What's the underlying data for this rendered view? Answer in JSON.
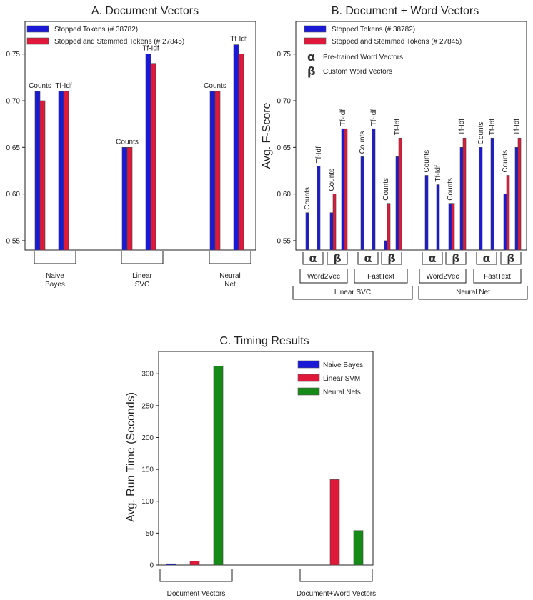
{
  "colors": {
    "blue": "#1a1ad6",
    "red": "#e0193a",
    "green": "#168a16"
  },
  "chart_data": [
    {
      "type": "bar",
      "title": "A. Document Vectors",
      "ylim": [
        0.54,
        0.785
      ],
      "yticks": [
        "0.55",
        "0.60",
        "0.65",
        "0.70",
        "0.75"
      ],
      "ytick_values": [
        0.55,
        0.6,
        0.65,
        0.7,
        0.75
      ],
      "legend": [
        {
          "label": "Stopped Tokens (# 38782)",
          "color": "blue"
        },
        {
          "label": "Stopped and Stemmed Tokens (# 27845)",
          "color": "red"
        }
      ],
      "legend_position": "top-left",
      "groups": [
        {
          "label_lines": [
            "Naive",
            "Bayes"
          ],
          "bars": [
            {
              "label": "Counts",
              "blue": 0.71,
              "red": 0.7
            },
            {
              "label": "Tf-Idf",
              "blue": 0.71,
              "red": 0.71
            }
          ]
        },
        {
          "label_lines": [
            "Linear",
            "SVC"
          ],
          "bars": [
            {
              "label": "Counts",
              "blue": 0.65,
              "red": 0.65
            },
            {
              "label": "Tf-Idf",
              "blue": 0.75,
              "red": 0.74
            }
          ]
        },
        {
          "label_lines": [
            "Neural",
            "Net"
          ],
          "bars": [
            {
              "label": "Counts",
              "blue": 0.71,
              "red": 0.71
            },
            {
              "label": "Tf-Idf",
              "blue": 0.76,
              "red": 0.75
            }
          ]
        }
      ]
    },
    {
      "type": "bar",
      "title": "B. Document + Word Vectors",
      "ylabel": "Avg. F-Score",
      "ylim": [
        0.54,
        0.785
      ],
      "yticks": [
        "0.55",
        "0.60",
        "0.65",
        "0.70",
        "0.75"
      ],
      "ytick_values": [
        0.55,
        0.6,
        0.65,
        0.7,
        0.75
      ],
      "legend": [
        {
          "label": "Stopped Tokens (# 38782)",
          "color": "blue"
        },
        {
          "label": "Stopped and Stemmed Tokens (# 27845)",
          "color": "red"
        }
      ],
      "legend_position": "top-left",
      "notes": [
        {
          "symbol": "α",
          "text": "Pre-trained Word Vectors"
        },
        {
          "symbol": "β",
          "text": "Custom Word Vectors"
        }
      ],
      "groups": [
        {
          "symbol": "α",
          "model": "Word2Vec",
          "classifier": "Linear SVC",
          "bars": [
            {
              "label": "Counts",
              "blue": 0.58,
              "red": null
            },
            {
              "label": "Tf-Idf",
              "blue": 0.63,
              "red": null
            }
          ]
        },
        {
          "symbol": "β",
          "model": "Word2Vec",
          "classifier": "Linear SVC",
          "bars": [
            {
              "label": "Counts",
              "blue": 0.58,
              "red": 0.6
            },
            {
              "label": "Tf-Idf",
              "blue": 0.67,
              "red": 0.67
            }
          ]
        },
        {
          "symbol": "α",
          "model": "FastText",
          "classifier": "Linear SVC",
          "bars": [
            {
              "label": "Counts",
              "blue": 0.64,
              "red": null
            },
            {
              "label": "Tf-Idf",
              "blue": 0.67,
              "red": null
            }
          ]
        },
        {
          "symbol": "β",
          "model": "FastText",
          "classifier": "Linear SVC",
          "bars": [
            {
              "label": "Counts",
              "blue": 0.55,
              "red": 0.59
            },
            {
              "label": "Tf-Idf",
              "blue": 0.64,
              "red": 0.66
            }
          ]
        },
        {
          "symbol": "α",
          "model": "Word2Vec",
          "classifier": "Neural Net",
          "bars": [
            {
              "label": "Counts",
              "blue": 0.62,
              "red": null
            },
            {
              "label": "Tf-Idf",
              "blue": 0.61,
              "red": null
            }
          ]
        },
        {
          "symbol": "β",
          "model": "Word2Vec",
          "classifier": "Neural Net",
          "bars": [
            {
              "label": "Counts",
              "blue": 0.59,
              "red": 0.59
            },
            {
              "label": "Tf-Idf",
              "blue": 0.65,
              "red": 0.66
            }
          ]
        },
        {
          "symbol": "α",
          "model": "FastText",
          "classifier": "Neural Net",
          "bars": [
            {
              "label": "Counts",
              "blue": 0.65,
              "red": null
            },
            {
              "label": "Tf-Idf",
              "blue": 0.66,
              "red": null
            }
          ]
        },
        {
          "symbol": "β",
          "model": "FastText",
          "classifier": "Neural Net",
          "bars": [
            {
              "label": "Counts",
              "blue": 0.6,
              "red": 0.62
            },
            {
              "label": "Tf-Idf",
              "blue": 0.65,
              "red": 0.66
            }
          ]
        }
      ],
      "model_labels": [
        "Word2Vec",
        "FastText",
        "Word2Vec",
        "FastText"
      ],
      "classifier_labels": [
        "Linear SVC",
        "Neural Net"
      ]
    },
    {
      "type": "bar",
      "title": "C. Timing Results",
      "ylabel": "Avg. Run Time (Seconds)",
      "ylim": [
        0,
        335
      ],
      "yticks": [
        "0",
        "50",
        "100",
        "150",
        "200",
        "250",
        "300"
      ],
      "ytick_values": [
        0,
        50,
        100,
        150,
        200,
        250,
        300
      ],
      "legend": [
        {
          "label": "Naive Bayes",
          "color": "blue"
        },
        {
          "label": "Linear SVM",
          "color": "red"
        },
        {
          "label": "Neural Nets",
          "color": "green"
        }
      ],
      "legend_position": "top-right",
      "categories": [
        "Document Vectors",
        "Document+Word Vectors"
      ],
      "series": [
        {
          "name": "Naive Bayes",
          "color": "blue",
          "values": [
            2,
            null
          ]
        },
        {
          "name": "Linear SVM",
          "color": "red",
          "values": [
            6,
            134
          ]
        },
        {
          "name": "Neural Nets",
          "color": "green",
          "values": [
            312,
            54
          ]
        }
      ]
    }
  ]
}
